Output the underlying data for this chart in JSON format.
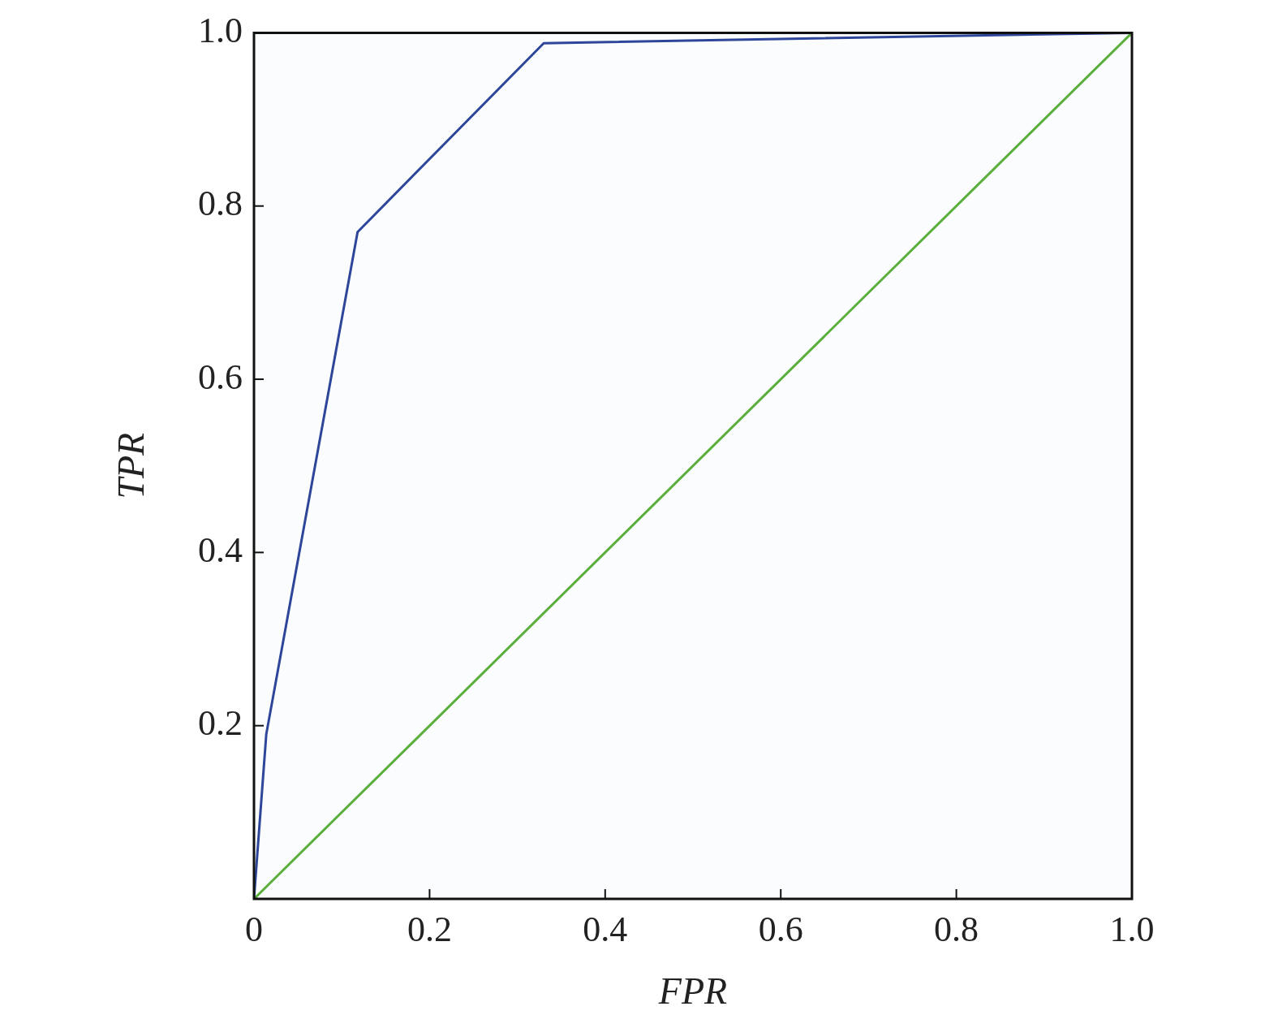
{
  "chart_data": {
    "type": "line",
    "xlabel": "FPR",
    "ylabel": "TPR",
    "xlim": [
      0,
      1
    ],
    "ylim": [
      0,
      1
    ],
    "xticks": [
      0,
      0.2,
      0.4,
      0.6,
      0.8,
      {
        "value": 1,
        "label": "1.0"
      }
    ],
    "yticks": [
      {
        "value": 0,
        "label": null
      },
      0.2,
      0.4,
      0.6,
      0.8,
      {
        "value": 1,
        "label": "1.0"
      }
    ],
    "series": [
      {
        "color": "#2e4699",
        "x": [
          0,
          0.014,
          0.118,
          0.33,
          1
        ],
        "values": [
          0,
          0.19,
          0.77,
          0.988,
          1
        ]
      },
      {
        "color": "#5aaf3c",
        "x": [
          0,
          1
        ],
        "values": [
          0,
          1
        ]
      }
    ],
    "grid": false,
    "legend": false,
    "marker": "none",
    "line_style": "solid"
  }
}
